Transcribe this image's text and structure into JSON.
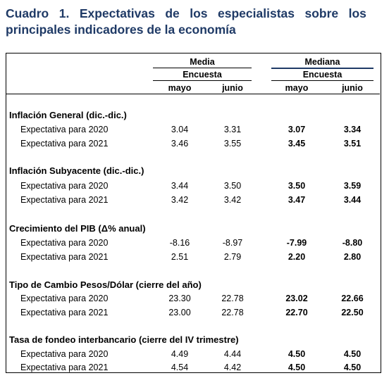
{
  "title": {
    "words_line1": [
      "Cuadro",
      "1.",
      "Expectativas",
      "de",
      "los",
      "especialistas",
      "sobre",
      "los"
    ],
    "line2": "principales indicadores de la economía"
  },
  "header": {
    "media": "Media",
    "mediana": "Mediana",
    "encuesta_media": "Encuesta",
    "encuesta_mediana": "Encuesta",
    "cols": [
      "mayo",
      "junio",
      "mayo",
      "junio"
    ]
  },
  "sections": [
    {
      "title": "Inflación General (dic.-dic.)",
      "rows": [
        {
          "label": "Expectativa para 2020",
          "values": [
            "3.04",
            "3.31",
            "3.07",
            "3.34"
          ]
        },
        {
          "label": "Expectativa para 2021",
          "values": [
            "3.46",
            "3.55",
            "3.45",
            "3.51"
          ]
        }
      ]
    },
    {
      "title": "Inflación Subyacente (dic.-dic.)",
      "rows": [
        {
          "label": "Expectativa para 2020",
          "values": [
            "3.44",
            "3.50",
            "3.50",
            "3.59"
          ]
        },
        {
          "label": "Expectativa para 2021",
          "values": [
            "3.42",
            "3.42",
            "3.47",
            "3.44"
          ]
        }
      ]
    },
    {
      "title": "Crecimiento del PIB (Δ% anual)",
      "rows": [
        {
          "label": "Expectativa para 2020",
          "values": [
            "-8.16",
            "-8.97",
            "-7.99",
            "-8.80"
          ]
        },
        {
          "label": "Expectativa para 2021",
          "values": [
            "2.51",
            "2.79",
            "2.20",
            "2.80"
          ]
        }
      ]
    },
    {
      "title": "Tipo de Cambio Pesos/Dólar (cierre del año)",
      "rows": [
        {
          "label": "Expectativa para 2020",
          "values": [
            "23.30",
            "22.78",
            "23.02",
            "22.66"
          ]
        },
        {
          "label": "Expectativa para 2021",
          "values": [
            "23.00",
            "22.78",
            "22.70",
            "22.50"
          ]
        }
      ]
    },
    {
      "title": "Tasa de fondeo interbancario (cierre del IV trimestre)",
      "rows": [
        {
          "label": "Expectativa para 2020",
          "values": [
            "4.49",
            "4.44",
            "4.50",
            "4.50"
          ]
        },
        {
          "label": "Expectativa para 2021",
          "values": [
            "4.54",
            "4.42",
            "4.50",
            "4.50"
          ]
        }
      ]
    }
  ]
}
